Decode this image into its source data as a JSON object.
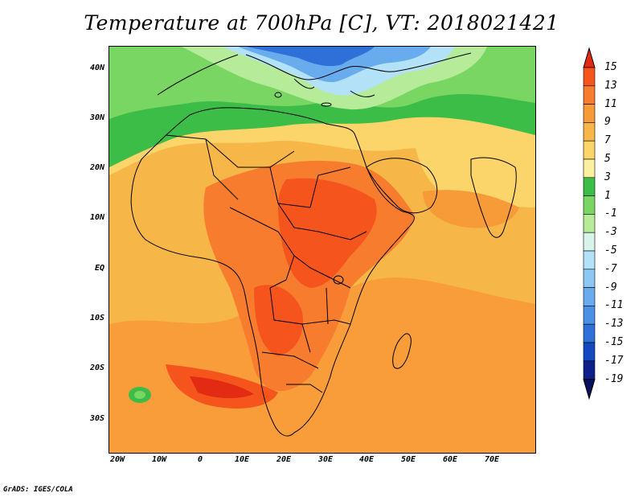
{
  "title": "Temperature at 700hPa [C], VT: 2018021421",
  "footer": "GrADS: IGES/COLA",
  "latitude_labels": [
    "40N",
    "30N",
    "20N",
    "10N",
    "EQ",
    "10S",
    "20S",
    "30S"
  ],
  "longitude_labels": [
    "20W",
    "10W",
    "0",
    "10E",
    "20E",
    "30E",
    "40E",
    "50E",
    "60E",
    "70E"
  ],
  "colorbar": {
    "labels": [
      "15",
      "13",
      "11",
      "9",
      "7",
      "5",
      "3",
      "1",
      "-1",
      "-3",
      "-5",
      "-7",
      "-9",
      "-11",
      "-13",
      "-15",
      "-17",
      "-19"
    ],
    "colors": [
      "#e32a12",
      "#f5551d",
      "#f77c2d",
      "#f79a38",
      "#f7b648",
      "#fbd46a",
      "#fbf0a0",
      "#3cbd48",
      "#7ad663",
      "#b6eb9a",
      "#d8f3ea",
      "#b3e1f7",
      "#8ec7f3",
      "#68acee",
      "#4a90e6",
      "#2e6fd8",
      "#1348c0",
      "#0f1f8a",
      "#0a1060"
    ]
  }
}
